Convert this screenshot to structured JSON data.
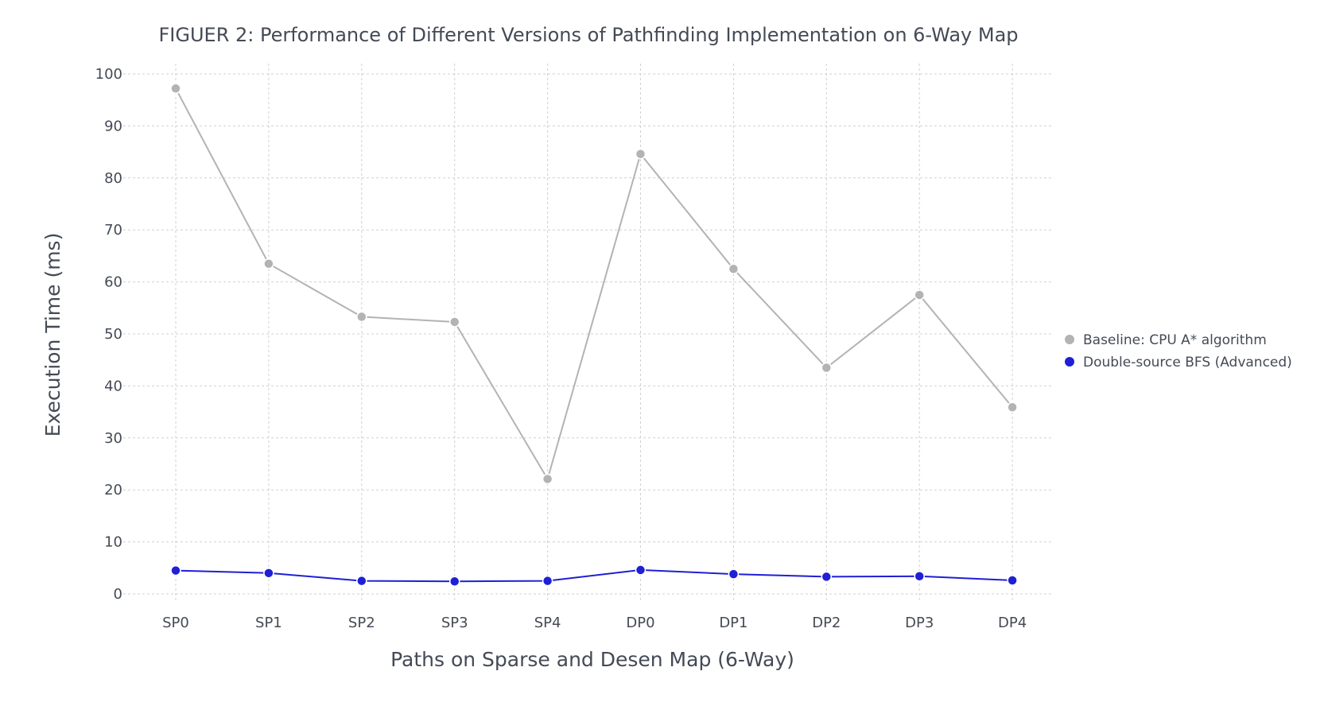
{
  "chart_data": {
    "type": "line",
    "title": "FIGUER 2: Performance of Different Versions of Pathfinding Implementation on 6-Way Map",
    "xlabel": "Paths on Sparse and Desen Map (6-Way)",
    "ylabel": "Execution Time (ms)",
    "categories": [
      "SP0",
      "SP1",
      "SP2",
      "SP3",
      "SP4",
      "DP0",
      "DP1",
      "DP2",
      "DP3",
      "DP4"
    ],
    "ylim": [
      0,
      100
    ],
    "yticks": [
      0,
      10,
      20,
      30,
      40,
      50,
      60,
      70,
      80,
      90,
      100
    ],
    "grid": true,
    "legend_position": "right",
    "series": [
      {
        "name": "Baseline: CPU A* algorithm",
        "color": "#b3b3b3",
        "values": [
          97.2,
          63.5,
          53.3,
          52.3,
          22.1,
          84.6,
          62.5,
          43.5,
          57.5,
          35.9
        ]
      },
      {
        "name": "Double-source BFS (Advanced)",
        "color": "#1f1fd6",
        "values": [
          4.5,
          4.0,
          2.5,
          2.4,
          2.5,
          4.6,
          3.8,
          3.3,
          3.4,
          2.6
        ]
      }
    ]
  }
}
